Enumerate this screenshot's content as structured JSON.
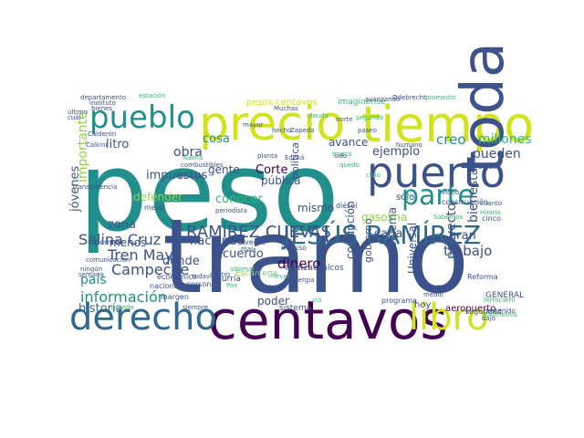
{
  "palette": {
    "dark_purple": "#440154",
    "indigo": "#3b528b",
    "blue": "#31688e",
    "teal": "#21908d",
    "green": "#35b779",
    "lime": "#90d743",
    "yellow": "#d2e21b"
  },
  "words": [
    {
      "text": "peso",
      "color": "#21908d"
    },
    {
      "text": "tramo",
      "color": "#3b528b"
    },
    {
      "text": "tiempo",
      "color": "#d2e21b"
    },
    {
      "text": "precio",
      "color": "#d2e21b"
    },
    {
      "text": "pueblo",
      "color": "#21908d"
    },
    {
      "text": "puerto",
      "color": "#3b528b"
    },
    {
      "text": "parte",
      "color": "#21908d"
    },
    {
      "text": "toda",
      "color": "#3b528b"
    },
    {
      "text": "centavos",
      "color": "#440154"
    },
    {
      "text": "derecho",
      "color": "#31688e"
    },
    {
      "text": "libro",
      "color": "#d2e21b"
    },
    {
      "text": "JESÚS RAMÍREZ",
      "color": "#31688e"
    },
    {
      "text": "RAMÍREZ CUEVAS",
      "color": "#3b528b"
    },
    {
      "text": "Tren Maya",
      "color": "#3b528b"
    },
    {
      "text": "Salina Cruz",
      "color": "#3b528b"
    },
    {
      "text": "Campeche",
      "color": "#3b528b"
    },
    {
      "text": "información",
      "color": "#21908d"
    },
    {
      "text": "historia",
      "color": "#31688e"
    },
    {
      "text": "dinero",
      "color": "#440154"
    },
    {
      "text": "obra",
      "color": "#3b528b"
    },
    {
      "text": "cosa",
      "color": "#21908d"
    },
    {
      "text": "creo",
      "color": "#21908d"
    },
    {
      "text": "millones",
      "color": "#35b779"
    },
    {
      "text": "pueden",
      "color": "#3b528b"
    },
    {
      "text": "trabajo",
      "color": "#3b528b"
    },
    {
      "text": "proyecto",
      "color": "#3b528b"
    },
    {
      "text": "bienestar",
      "color": "#3b528b"
    },
    {
      "text": "ejemplo",
      "color": "#3b528b"
    },
    {
      "text": "litro",
      "color": "#3b528b"
    },
    {
      "text": "gente",
      "color": "#3b528b"
    },
    {
      "text": "Corte",
      "color": "#440154"
    },
    {
      "text": "conocer",
      "color": "#35b779"
    },
    {
      "text": "haciendo",
      "color": "#3b528b"
    },
    {
      "text": "dónde",
      "color": "#3b528b"
    },
    {
      "text": "zona",
      "color": "#3b528b"
    },
    {
      "text": "menos",
      "color": "#3b528b"
    },
    {
      "text": "país",
      "color": "#21908d"
    },
    {
      "text": "acuerdo",
      "color": "#3b528b"
    },
    {
      "text": "poder",
      "color": "#3b528b"
    },
    {
      "text": "gasolina",
      "color": "#90d743"
    },
    {
      "text": "cada",
      "color": "#3b528b"
    },
    {
      "text": "gran",
      "color": "#3b528b"
    },
    {
      "text": "mismo",
      "color": "#3b528b"
    },
    {
      "text": "pública",
      "color": "#3b528b"
    },
    {
      "text": "avance",
      "color": "#3b528b"
    },
    {
      "text": "defender",
      "color": "#90d743"
    },
    {
      "text": "importante",
      "color": "#90d743"
    },
    {
      "text": "impuestos",
      "color": "#3b528b"
    },
    {
      "text": "jóvenes",
      "color": "#3b528b"
    },
    {
      "text": "corrupción",
      "color": "#3b528b"
    },
    {
      "text": "gobierno",
      "color": "#3b528b"
    },
    {
      "text": "problema",
      "color": "#3b528b"
    },
    {
      "text": "Universal",
      "color": "#3b528b"
    },
    {
      "text": "política",
      "color": "#3b528b"
    },
    {
      "text": "sólo",
      "color": "#3b528b"
    },
    {
      "text": "aeropuerto",
      "color": "#440154"
    },
    {
      "text": "hoy",
      "color": "#3b528b"
    },
    {
      "text": "Coatzacoalcos",
      "color": "#3b528b"
    },
    {
      "text": "Escárcega",
      "color": "#90d743"
    },
    {
      "text": "Gurría",
      "color": "#3b528b"
    },
    {
      "text": "sistema",
      "color": "#3b528b"
    },
    {
      "text": "programa",
      "color": "#3b528b"
    },
    {
      "text": "veces",
      "color": "#3b528b"
    },
    {
      "text": "pesos centavos",
      "color": "#d2e21b"
    },
    {
      "text": "imagínense",
      "color": "#35b779"
    },
    {
      "text": "departamento",
      "color": "#3b528b"
    },
    {
      "text": "estación",
      "color": "#35b779"
    },
    {
      "text": "Odebrecht",
      "color": "#3b528b"
    },
    {
      "text": "avanzando",
      "color": "#3b528b"
    },
    {
      "text": "promedio",
      "color": "#35b779"
    },
    {
      "text": "mayor",
      "color": "#3b528b"
    },
    {
      "text": "sido",
      "color": "#3b528b"
    },
    {
      "text": "cinco",
      "color": "#3b528b"
    },
    {
      "text": "permite",
      "color": "#3b528b"
    },
    {
      "text": "Calkini",
      "color": "#3b528b"
    },
    {
      "text": "Edzná",
      "color": "#3b528b"
    },
    {
      "text": "transparencia",
      "color": "#3b528b"
    },
    {
      "text": "pensión",
      "color": "#3b528b"
    },
    {
      "text": "planta",
      "color": "#3b528b"
    },
    {
      "text": "incluso",
      "color": "#3b528b"
    },
    {
      "text": "diésel",
      "color": "#3b528b"
    },
    {
      "text": "último",
      "color": "#3b528b"
    },
    {
      "text": "margen",
      "color": "#3b528b"
    },
    {
      "text": "económico",
      "color": "#3b528b"
    },
    {
      "text": "nacional",
      "color": "#3b528b"
    },
    {
      "text": "personas",
      "color": "#3b528b"
    },
    {
      "text": "centro",
      "color": "#3b528b"
    },
    {
      "text": "todavía",
      "color": "#3b528b"
    },
    {
      "text": "nadie",
      "color": "#3b528b"
    },
    {
      "text": "energía",
      "color": "#3b528b"
    },
    {
      "text": "GENERAL",
      "color": "#3b528b"
    },
    {
      "text": "Reforma",
      "color": "#3b528b"
    },
    {
      "text": "construcción",
      "color": "#3b528b"
    },
    {
      "text": "video",
      "color": "#3b528b"
    },
    {
      "text": "seguridad",
      "color": "#3b528b"
    },
    {
      "text": "contenido",
      "color": "#3b528b"
    },
    {
      "text": "bajo",
      "color": "#3b528b"
    },
    {
      "text": "hecho",
      "color": "#3b528b"
    },
    {
      "text": "Zapeda",
      "color": "#3b528b"
    },
    {
      "text": "humano",
      "color": "#3b528b"
    },
    {
      "text": "instituto",
      "color": "#3b528b"
    },
    {
      "text": "semana",
      "color": "#3b528b"
    },
    {
      "text": "comunicación",
      "color": "#3b528b"
    },
    {
      "text": "mejor",
      "color": "#3b528b"
    },
    {
      "text": "periodista",
      "color": "#3b528b"
    },
    {
      "text": "mal",
      "color": "#3b528b"
    },
    {
      "text": "vía",
      "color": "#35b779"
    },
    {
      "text": "siempre",
      "color": "#3b528b"
    },
    {
      "text": "grande",
      "color": "#35b779"
    },
    {
      "text": "cuál",
      "color": "#3b528b"
    },
    {
      "text": "bienes",
      "color": "#3b528b"
    },
    {
      "text": "paseo",
      "color": "#3b528b"
    },
    {
      "text": "días",
      "color": "#3b528b"
    },
    {
      "text": "medio",
      "color": "#3b528b"
    },
    {
      "text": "norte",
      "color": "#3b528b"
    },
    {
      "text": "ningún",
      "color": "#3b528b"
    },
    {
      "text": "combustibles",
      "color": "#3b528b"
    },
    {
      "text": "dijo",
      "color": "#3b528b"
    },
    {
      "text": "Calderón",
      "color": "#3b528b"
    },
    {
      "text": "Unidos",
      "color": "#3b528b"
    },
    {
      "text": "cuanto",
      "color": "#3b528b"
    },
    {
      "text": "Muchas",
      "color": "#3b528b"
    },
    {
      "text": "llevar",
      "color": "#35b779"
    },
    {
      "text": "deuda",
      "color": "#35b779"
    },
    {
      "text": "ferrocarril",
      "color": "#35b779"
    },
    {
      "text": "kilómetros",
      "color": "#35b779"
    },
    {
      "text": "quedo",
      "color": "#35b779"
    },
    {
      "text": "Hilario",
      "color": "#35b779"
    },
    {
      "text": "segunda",
      "color": "#35b779"
    },
    {
      "text": "Nalina",
      "color": "#35b779"
    },
    {
      "text": "Pax",
      "color": "#35b779"
    },
    {
      "text": "altomar",
      "color": "#35b779"
    },
    {
      "text": "marco",
      "color": "#35b779"
    },
    {
      "text": "ciclo",
      "color": "#35b779"
    },
    {
      "text": "vivir",
      "color": "#35b779"
    },
    {
      "text": "Sabemos",
      "color": "#35b779"
    }
  ]
}
